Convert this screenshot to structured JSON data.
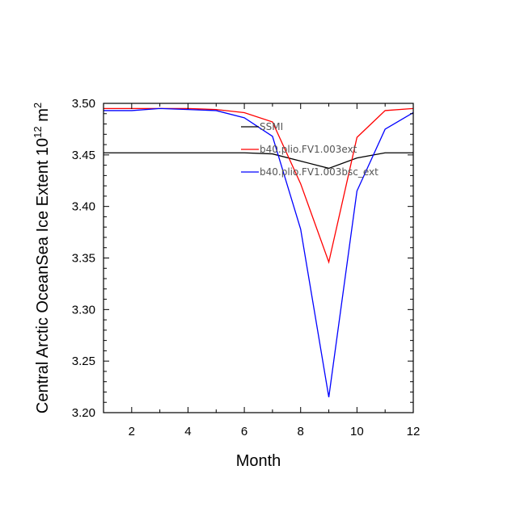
{
  "chart_data": {
    "type": "line",
    "xlabel": "Month",
    "ylabel_main": "Central Arctic OceanSea Ice Extent 10",
    "ylabel_exp": "12",
    "ylabel_unit": " m",
    "ylabel_unit_exp": "2",
    "xlim": [
      1,
      12
    ],
    "ylim": [
      3.2,
      3.5
    ],
    "xticks": [
      2,
      4,
      6,
      8,
      10,
      12
    ],
    "xtick_labels": [
      "2",
      "4",
      "6",
      "8",
      "10",
      "12"
    ],
    "yticks": [
      3.2,
      3.25,
      3.3,
      3.35,
      3.4,
      3.45,
      3.5
    ],
    "ytick_labels": [
      "3.20",
      "3.25",
      "3.30",
      "3.35",
      "3.40",
      "3.45",
      "3.50"
    ],
    "grid": false,
    "legend_position": "top-right",
    "x": [
      1,
      2,
      3,
      4,
      5,
      6,
      7,
      8,
      9,
      10,
      11,
      12
    ],
    "series": [
      {
        "name": "SSMI",
        "color": "#000000",
        "values": [
          3.452,
          3.452,
          3.452,
          3.452,
          3.452,
          3.452,
          3.451,
          3.444,
          3.437,
          3.447,
          3.452,
          3.452
        ]
      },
      {
        "name": "b40.plio.FV1.003ext",
        "color": "#ff0000",
        "values": [
          3.495,
          3.495,
          3.495,
          3.495,
          3.494,
          3.491,
          3.482,
          3.422,
          3.346,
          3.467,
          3.493,
          3.495
        ]
      },
      {
        "name": "b40.plio.FV1.003bsc_ext",
        "color": "#0000ff",
        "values": [
          3.493,
          3.493,
          3.495,
          3.494,
          3.493,
          3.486,
          3.468,
          3.378,
          3.215,
          3.415,
          3.475,
          3.491
        ]
      }
    ]
  }
}
